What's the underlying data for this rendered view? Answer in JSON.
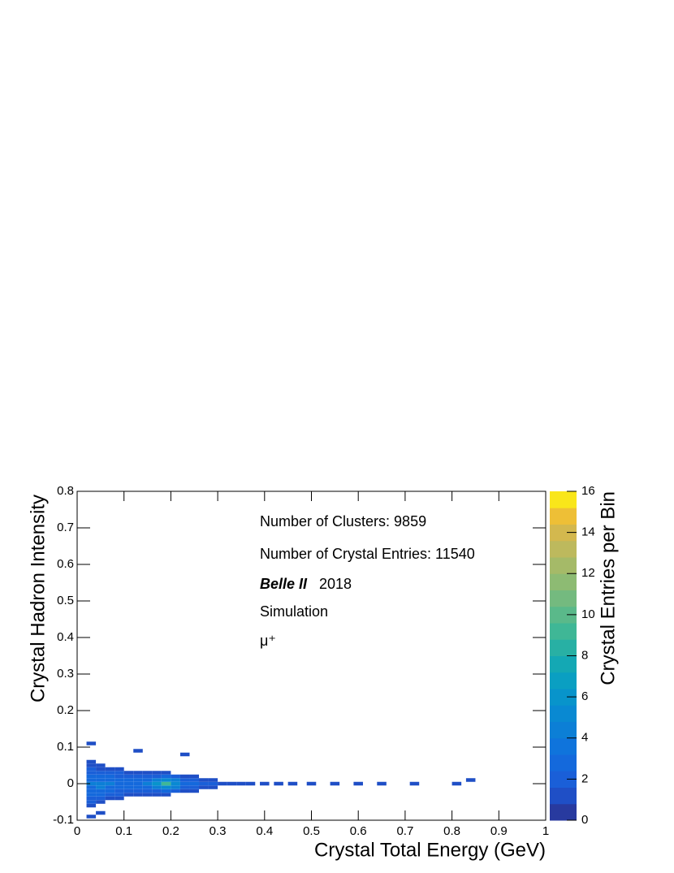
{
  "chart_data": {
    "type": "heatmap2d",
    "xlabel": "Crystal Total Energy (GeV)",
    "ylabel": "Crystal Hadron Intensity",
    "zlabel": "Crystal Entries per Bin",
    "annotations": [
      "Number of Clusters: 9859",
      "Number of Crystal Entries: 11540",
      "Belle II",
      "2018",
      "Simulation",
      "μ⁺"
    ],
    "xlim": [
      0,
      1
    ],
    "xticks": [
      0,
      0.1,
      0.2,
      0.3,
      0.4,
      0.5,
      0.6,
      0.7,
      0.8,
      0.9,
      1
    ],
    "ylim": [
      -0.1,
      0.8
    ],
    "yticks": [
      -0.1,
      0,
      0.1,
      0.2,
      0.3,
      0.4,
      0.5,
      0.6,
      0.7,
      0.8
    ],
    "zlim": [
      0,
      16
    ],
    "zticks": [
      0,
      2,
      4,
      6,
      8,
      10,
      12,
      14,
      16
    ],
    "colorscale": [
      "#283a9f",
      "#1f4fc6",
      "#1a5fd8",
      "#1469dc",
      "#0f74dc",
      "#0c7fd6",
      "#0989d2",
      "#0894cb",
      "#0a9fc2",
      "#14a8b4",
      "#28b0a4",
      "#3fb796",
      "#5ab98a",
      "#74ba7f",
      "#8dbb73",
      "#a5ba68",
      "#bdb95d",
      "#d3b84e",
      "#eebf36",
      "#f9e61a"
    ],
    "x": [
      0.03,
      0.03,
      0.03,
      0.03,
      0.03,
      0.03,
      0.03,
      0.03,
      0.03,
      0.03,
      0.03,
      0.03,
      0.03,
      0.05,
      0.05,
      0.05,
      0.05,
      0.05,
      0.05,
      0.05,
      0.05,
      0.05,
      0.05,
      0.05,
      0.07,
      0.07,
      0.07,
      0.07,
      0.07,
      0.07,
      0.07,
      0.07,
      0.07,
      0.09,
      0.09,
      0.09,
      0.09,
      0.09,
      0.09,
      0.09,
      0.09,
      0.09,
      0.11,
      0.11,
      0.11,
      0.11,
      0.11,
      0.11,
      0.11,
      0.13,
      0.13,
      0.13,
      0.13,
      0.13,
      0.13,
      0.13,
      0.15,
      0.15,
      0.15,
      0.15,
      0.15,
      0.15,
      0.15,
      0.17,
      0.17,
      0.17,
      0.17,
      0.17,
      0.17,
      0.17,
      0.19,
      0.19,
      0.19,
      0.19,
      0.19,
      0.19,
      0.19,
      0.21,
      0.21,
      0.21,
      0.21,
      0.21,
      0.23,
      0.23,
      0.23,
      0.23,
      0.23,
      0.25,
      0.25,
      0.25,
      0.25,
      0.25,
      0.27,
      0.27,
      0.27,
      0.29,
      0.29,
      0.29,
      0.31,
      0.33,
      0.35,
      0.37,
      0.4,
      0.43,
      0.46,
      0.5,
      0.55,
      0.6,
      0.65,
      0.72,
      0.81,
      0.84,
      0.03,
      0.03,
      0.05,
      0.13,
      0.23
    ],
    "y": [
      -0.06,
      -0.05,
      -0.04,
      -0.03,
      -0.02,
      -0.01,
      0,
      0.01,
      0.02,
      0.03,
      0.04,
      0.05,
      0.06,
      -0.05,
      -0.04,
      -0.03,
      -0.02,
      -0.01,
      0,
      0.01,
      0.02,
      0.03,
      0.04,
      0.05,
      -0.04,
      -0.03,
      -0.02,
      -0.01,
      0,
      0.01,
      0.02,
      0.03,
      0.04,
      -0.04,
      -0.03,
      -0.02,
      -0.01,
      0,
      0.01,
      0.02,
      0.03,
      0.04,
      -0.03,
      -0.02,
      -0.01,
      0,
      0.01,
      0.02,
      0.03,
      -0.03,
      -0.02,
      -0.01,
      0,
      0.01,
      0.02,
      0.03,
      -0.03,
      -0.02,
      -0.01,
      0,
      0.01,
      0.02,
      0.03,
      -0.03,
      -0.02,
      -0.01,
      0,
      0.01,
      0.02,
      0.03,
      -0.03,
      -0.02,
      -0.01,
      0,
      0.01,
      0.02,
      0.03,
      -0.02,
      -0.01,
      0,
      0.01,
      0.02,
      -0.02,
      -0.01,
      0,
      0.01,
      0.02,
      -0.02,
      -0.01,
      0,
      0.01,
      0.02,
      -0.01,
      0,
      0.01,
      -0.01,
      0,
      0.01,
      0,
      0,
      0,
      0,
      0,
      0,
      0,
      0,
      0,
      0,
      0,
      0,
      0,
      0.01,
      0.11,
      -0.09,
      -0.08,
      0.09,
      0.08
    ],
    "values": [
      1,
      2,
      2,
      3,
      3,
      3,
      4,
      3,
      3,
      2,
      2,
      1,
      1,
      1,
      2,
      3,
      3,
      4,
      4,
      3,
      3,
      2,
      1,
      1,
      1,
      2,
      3,
      3,
      4,
      3,
      3,
      2,
      1,
      1,
      2,
      2,
      3,
      3,
      3,
      2,
      2,
      1,
      1,
      2,
      3,
      3,
      3,
      2,
      1,
      1,
      2,
      3,
      3,
      3,
      2,
      1,
      1,
      2,
      3,
      4,
      3,
      2,
      1,
      1,
      2,
      4,
      6,
      4,
      2,
      1,
      1,
      3,
      5,
      9,
      5,
      3,
      1,
      2,
      4,
      5,
      4,
      2,
      1,
      2,
      3,
      2,
      1,
      1,
      2,
      3,
      2,
      1,
      1,
      2,
      1,
      1,
      2,
      1,
      1,
      1,
      1,
      1,
      1,
      1,
      1,
      1,
      1,
      1,
      1,
      1,
      1,
      1,
      1,
      1,
      1,
      1,
      1
    ]
  }
}
